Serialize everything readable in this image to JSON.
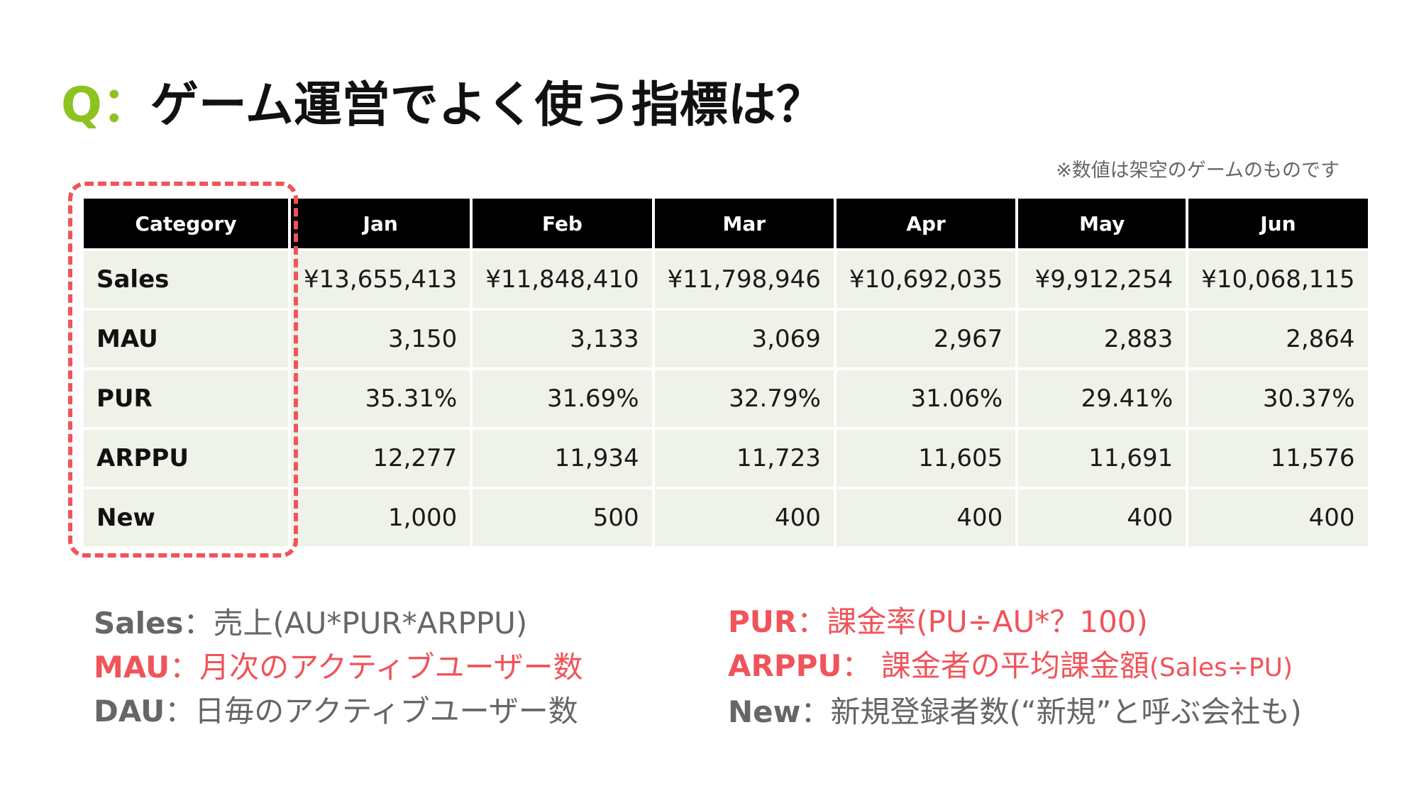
{
  "title": {
    "prefix": "Q：",
    "text": "ゲーム運営でよく使う指標は？"
  },
  "note": "※数値は架空のゲームのものです",
  "table": {
    "headers": [
      "Category",
      "Jan",
      "Feb",
      "Mar",
      "Apr",
      "May",
      "Jun"
    ],
    "rows": [
      {
        "category": "Sales",
        "values": [
          "¥13,655,413",
          "¥11,848,410",
          "¥11,798,946",
          "¥10,692,035",
          "¥9,912,254",
          "¥10,068,115"
        ]
      },
      {
        "category": "MAU",
        "values": [
          "3,150",
          "3,133",
          "3,069",
          "2,967",
          "2,883",
          "2,864"
        ]
      },
      {
        "category": "PUR",
        "values": [
          "35.31%",
          "31.69%",
          "32.79%",
          "31.06%",
          "29.41%",
          "30.37%"
        ]
      },
      {
        "category": "ARPPU",
        "values": [
          "12,277",
          "11,934",
          "11,723",
          "11,605",
          "11,691",
          "11,576"
        ]
      },
      {
        "category": "New",
        "values": [
          "1,000",
          "500",
          "400",
          "400",
          "400",
          "400"
        ]
      }
    ]
  },
  "definitions": {
    "left": [
      {
        "term": "Sales",
        "sep": "：",
        "desc": "売上(AU*PUR*ARPPU)"
      },
      {
        "term": "MAU",
        "sep": "：",
        "desc": "月次のアクティブユーザー数"
      },
      {
        "term": "DAU",
        "sep": "：",
        "desc": "日毎のアクティブユーザー数"
      }
    ],
    "right": [
      {
        "term": "PUR",
        "sep": "：",
        "desc": "課金率(PU÷AU*？100)"
      },
      {
        "term": "ARPPU",
        "sep": "： ",
        "desc": "課金者の平均課金額",
        "desc_small": "(Sales÷PU)"
      },
      {
        "term": "New",
        "sep": "：",
        "desc": "新規登録者数(“新規”と呼ぶ会社も)"
      }
    ]
  },
  "colors": {
    "accent_green": "#8dc21f",
    "highlight_red": "#f0545a",
    "header_bg": "#000000",
    "cell_bg": "#eef2e8"
  }
}
